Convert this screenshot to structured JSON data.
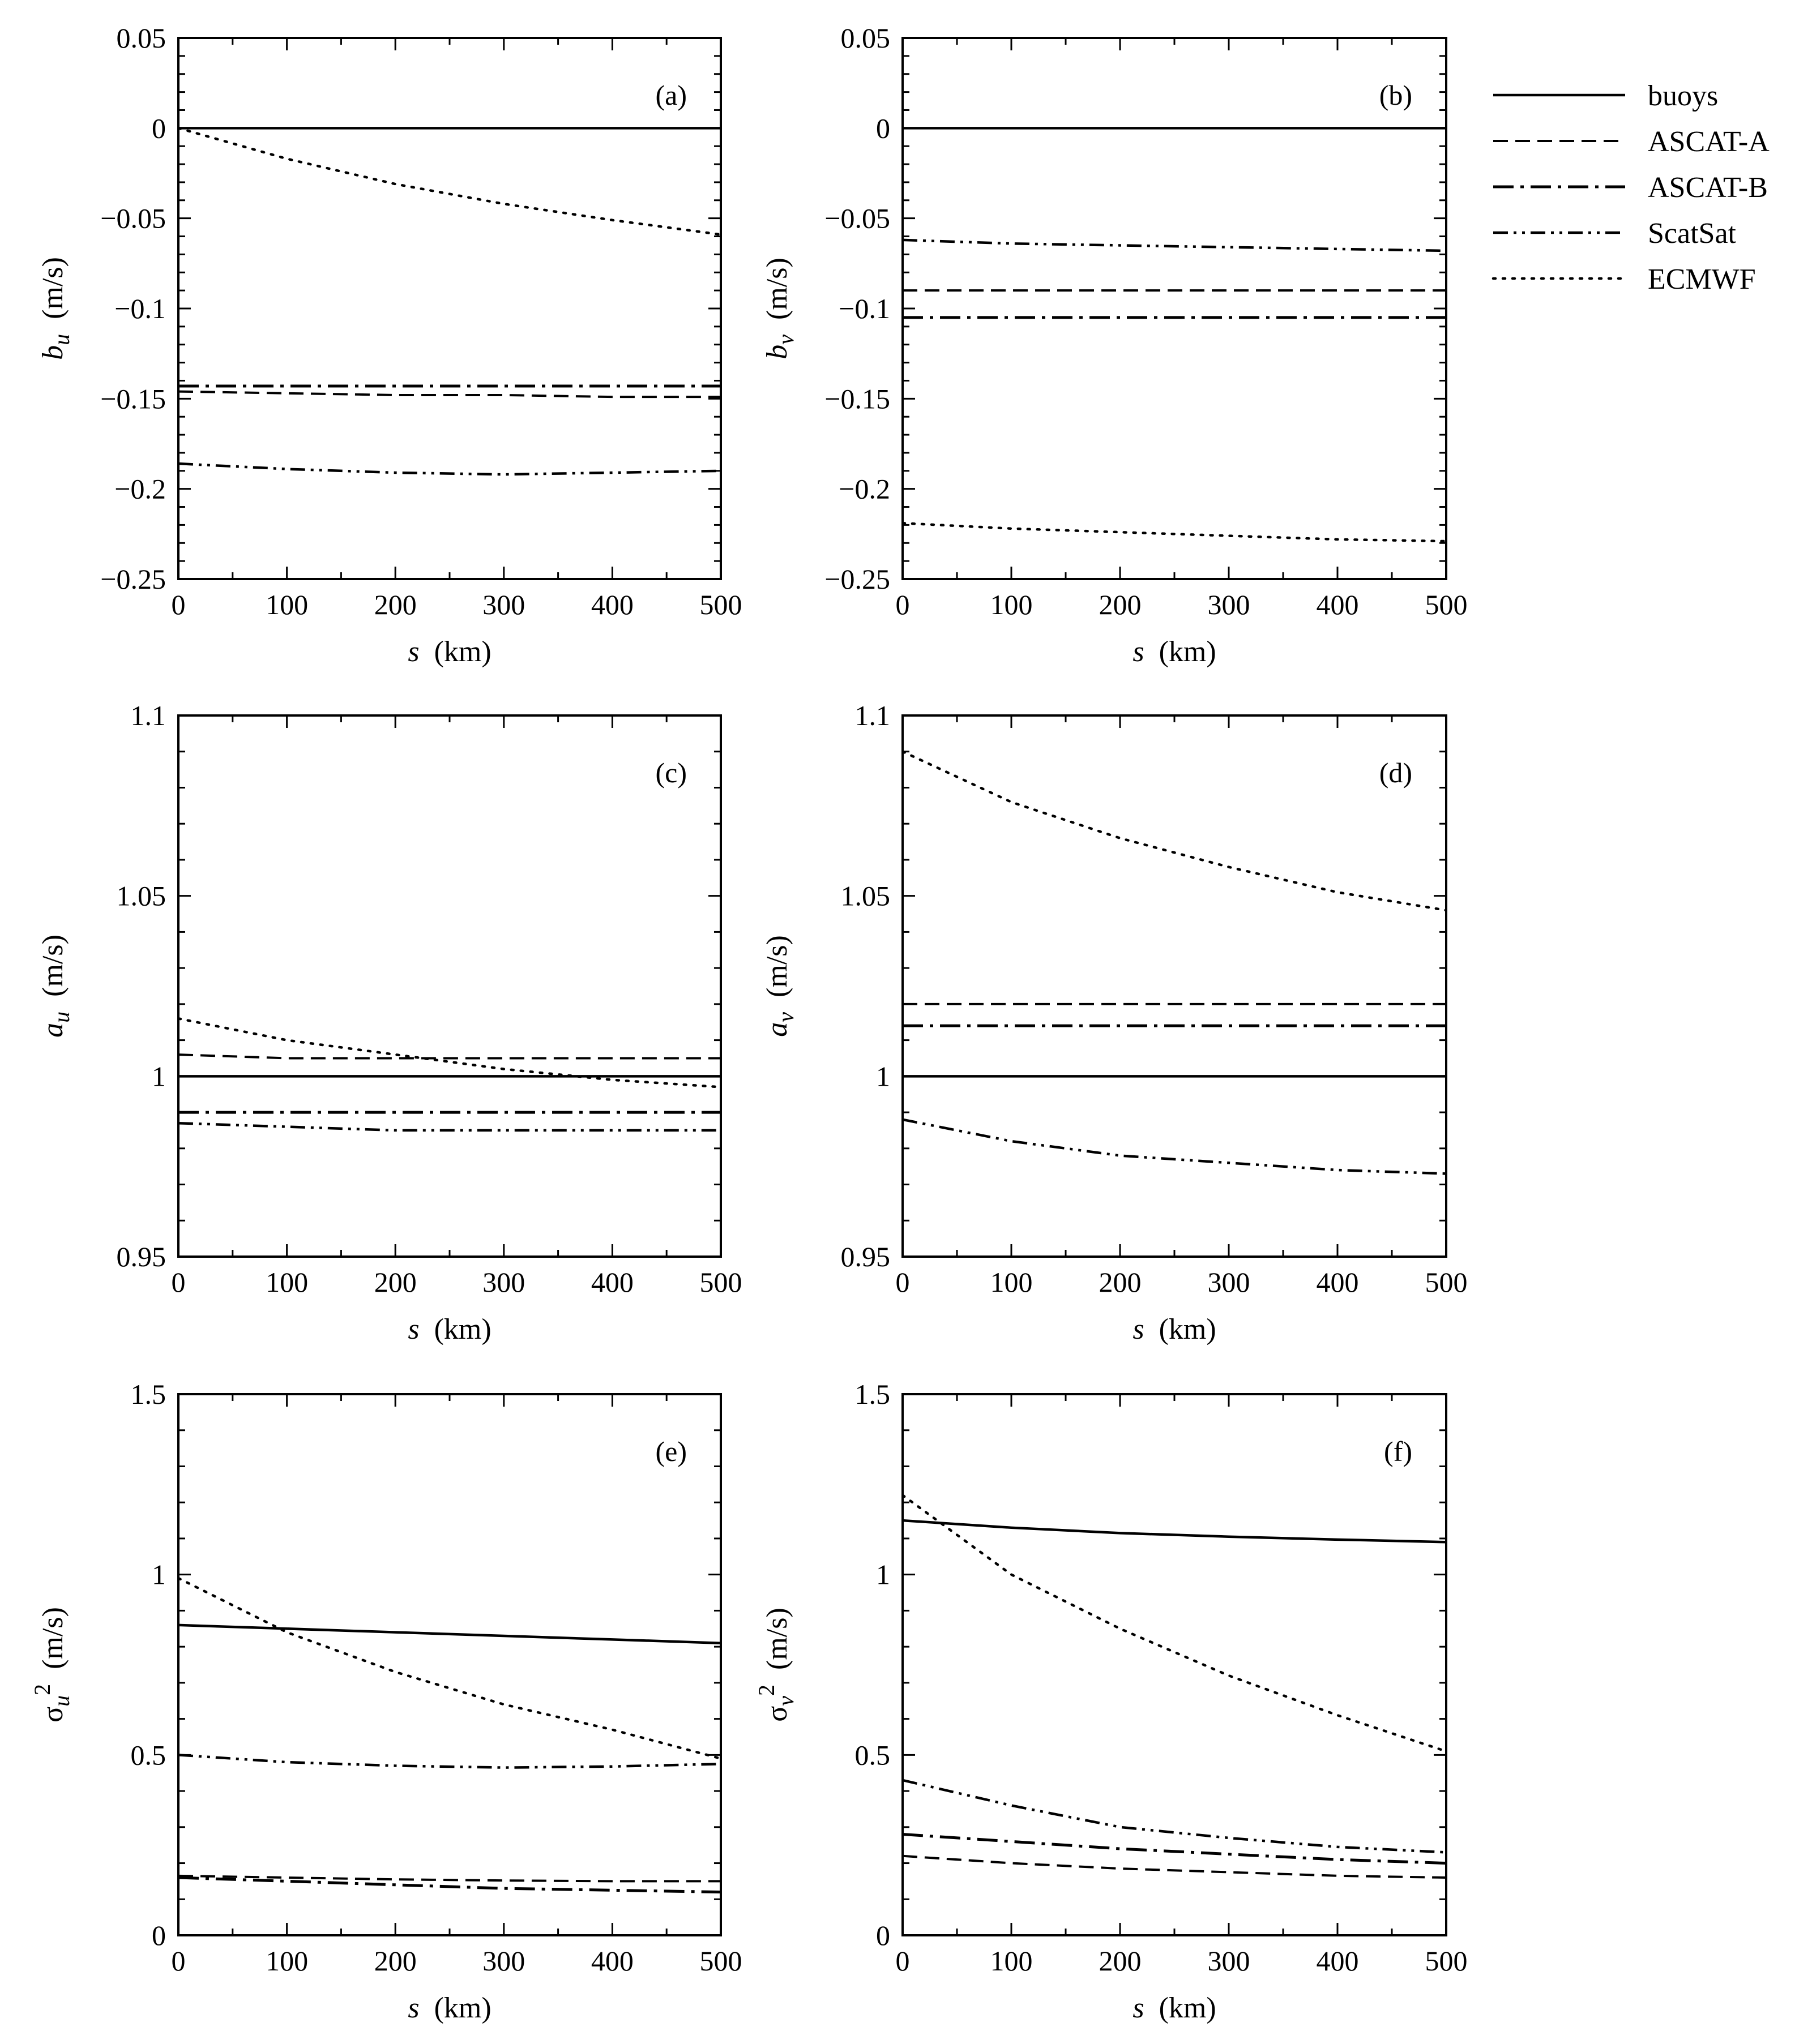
{
  "legend": {
    "entries": [
      {
        "name": "buoys",
        "style": "solid"
      },
      {
        "name": "ASCAT-A",
        "style": "dashed"
      },
      {
        "name": "ASCAT-B",
        "style": "dashdot"
      },
      {
        "name": "ScatSat",
        "style": "dashdotdot"
      },
      {
        "name": "ECMWF",
        "style": "dotted"
      }
    ]
  },
  "chart_data": [
    {
      "type": "line",
      "panel": "(a)",
      "xlabel": "s  (km)",
      "ylabel": "bu (m/s)",
      "ylabel_main": "b",
      "ylabel_sub": "u",
      "ylabel_sup": "",
      "ylabel_unit": "(m/s)",
      "xlim": [
        0,
        500
      ],
      "ylim": [
        -0.25,
        0.05
      ],
      "xticks": [
        0,
        100,
        200,
        300,
        400,
        500
      ],
      "xtick_labels": [
        "0",
        "100",
        "200",
        "300",
        "400",
        "500"
      ],
      "yticks": [
        -0.25,
        -0.2,
        -0.15,
        -0.1,
        -0.05,
        0,
        0.05
      ],
      "ytick_labels": [
        "−0.25",
        "−0.2",
        "−0.15",
        "−0.1",
        "−0.05",
        "0",
        "0.05"
      ],
      "x": [
        0,
        100,
        200,
        300,
        400,
        500
      ],
      "series": [
        {
          "name": "buoys",
          "values": [
            0,
            0,
            0,
            0,
            0,
            0
          ]
        },
        {
          "name": "ASCAT-A",
          "values": [
            -0.146,
            -0.147,
            -0.148,
            -0.148,
            -0.149,
            -0.149
          ]
        },
        {
          "name": "ASCAT-B",
          "values": [
            -0.143,
            -0.143,
            -0.143,
            -0.143,
            -0.143,
            -0.143
          ]
        },
        {
          "name": "ScatSat",
          "values": [
            -0.186,
            -0.189,
            -0.191,
            -0.192,
            -0.191,
            -0.19
          ]
        },
        {
          "name": "ECMWF",
          "values": [
            0,
            -0.017,
            -0.031,
            -0.042,
            -0.051,
            -0.059
          ]
        }
      ]
    },
    {
      "type": "line",
      "panel": "(b)",
      "xlabel": "s  (km)",
      "ylabel": "bv (m/s)",
      "ylabel_main": "b",
      "ylabel_sub": "v",
      "ylabel_sup": "",
      "ylabel_unit": "(m/s)",
      "xlim": [
        0,
        500
      ],
      "ylim": [
        -0.25,
        0.05
      ],
      "xticks": [
        0,
        100,
        200,
        300,
        400,
        500
      ],
      "xtick_labels": [
        "0",
        "100",
        "200",
        "300",
        "400",
        "500"
      ],
      "yticks": [
        -0.25,
        -0.2,
        -0.15,
        -0.1,
        -0.05,
        0,
        0.05
      ],
      "ytick_labels": [
        "−0.25",
        "−0.2",
        "−0.15",
        "−0.1",
        "−0.05",
        "0",
        "0.05"
      ],
      "x": [
        0,
        100,
        200,
        300,
        400,
        500
      ],
      "series": [
        {
          "name": "buoys",
          "values": [
            0,
            0,
            0,
            0,
            0,
            0
          ]
        },
        {
          "name": "ASCAT-A",
          "values": [
            -0.09,
            -0.09,
            -0.09,
            -0.09,
            -0.09,
            -0.09
          ]
        },
        {
          "name": "ASCAT-B",
          "values": [
            -0.105,
            -0.105,
            -0.105,
            -0.105,
            -0.105,
            -0.105
          ]
        },
        {
          "name": "ScatSat",
          "values": [
            -0.062,
            -0.064,
            -0.065,
            -0.066,
            -0.067,
            -0.068
          ]
        },
        {
          "name": "ECMWF",
          "values": [
            -0.219,
            -0.222,
            -0.224,
            -0.226,
            -0.228,
            -0.229
          ]
        }
      ]
    },
    {
      "type": "line",
      "panel": "(c)",
      "xlabel": "s  (km)",
      "ylabel": "au (m/s)",
      "ylabel_main": "a",
      "ylabel_sub": "u",
      "ylabel_sup": "",
      "ylabel_unit": "(m/s)",
      "xlim": [
        0,
        500
      ],
      "ylim": [
        0.95,
        1.1
      ],
      "xticks": [
        0,
        100,
        200,
        300,
        400,
        500
      ],
      "xtick_labels": [
        "0",
        "100",
        "200",
        "300",
        "400",
        "500"
      ],
      "yticks": [
        0.95,
        1,
        1.05,
        1.1
      ],
      "ytick_labels": [
        "0.95",
        "1",
        "1.05",
        "1.1"
      ],
      "x": [
        0,
        100,
        200,
        300,
        400,
        500
      ],
      "series": [
        {
          "name": "buoys",
          "values": [
            1,
            1,
            1,
            1,
            1,
            1
          ]
        },
        {
          "name": "ASCAT-A",
          "values": [
            1.006,
            1.005,
            1.005,
            1.005,
            1.005,
            1.005
          ]
        },
        {
          "name": "ASCAT-B",
          "values": [
            0.99,
            0.99,
            0.99,
            0.99,
            0.99,
            0.99
          ]
        },
        {
          "name": "ScatSat",
          "values": [
            0.987,
            0.986,
            0.985,
            0.985,
            0.985,
            0.985
          ]
        },
        {
          "name": "ECMWF",
          "values": [
            1.016,
            1.01,
            1.006,
            1.002,
            0.999,
            0.997
          ]
        }
      ]
    },
    {
      "type": "line",
      "panel": "(d)",
      "xlabel": "s  (km)",
      "ylabel": "av (m/s)",
      "ylabel_main": "a",
      "ylabel_sub": "v",
      "ylabel_sup": "",
      "ylabel_unit": "(m/s)",
      "xlim": [
        0,
        500
      ],
      "ylim": [
        0.95,
        1.1
      ],
      "xticks": [
        0,
        100,
        200,
        300,
        400,
        500
      ],
      "xtick_labels": [
        "0",
        "100",
        "200",
        "300",
        "400",
        "500"
      ],
      "yticks": [
        0.95,
        1,
        1.05,
        1.1
      ],
      "ytick_labels": [
        "0.95",
        "1",
        "1.05",
        "1.1"
      ],
      "x": [
        0,
        100,
        200,
        300,
        400,
        500
      ],
      "series": [
        {
          "name": "buoys",
          "values": [
            1,
            1,
            1,
            1,
            1,
            1
          ]
        },
        {
          "name": "ASCAT-A",
          "values": [
            1.02,
            1.02,
            1.02,
            1.02,
            1.02,
            1.02
          ]
        },
        {
          "name": "ASCAT-B",
          "values": [
            1.014,
            1.014,
            1.014,
            1.014,
            1.014,
            1.014
          ]
        },
        {
          "name": "ScatSat",
          "values": [
            0.988,
            0.982,
            0.978,
            0.976,
            0.974,
            0.973
          ]
        },
        {
          "name": "ECMWF",
          "values": [
            1.09,
            1.076,
            1.066,
            1.058,
            1.051,
            1.046
          ]
        }
      ]
    },
    {
      "type": "line",
      "panel": "(e)",
      "xlabel": "s  (km)",
      "ylabel": "σu² (m/s)",
      "ylabel_main": "σ",
      "ylabel_sub": "u",
      "ylabel_sup": "2",
      "ylabel_unit": "(m/s)",
      "xlim": [
        0,
        500
      ],
      "ylim": [
        0,
        1.5
      ],
      "xticks": [
        0,
        100,
        200,
        300,
        400,
        500
      ],
      "xtick_labels": [
        "0",
        "100",
        "200",
        "300",
        "400",
        "500"
      ],
      "yticks": [
        0,
        0.5,
        1,
        1.5
      ],
      "ytick_labels": [
        "0",
        "0.5",
        "1",
        "1.5"
      ],
      "x": [
        0,
        100,
        200,
        300,
        400,
        500
      ],
      "series": [
        {
          "name": "buoys",
          "values": [
            0.86,
            0.85,
            0.84,
            0.83,
            0.82,
            0.81
          ]
        },
        {
          "name": "ASCAT-A",
          "values": [
            0.165,
            0.16,
            0.155,
            0.152,
            0.15,
            0.15
          ]
        },
        {
          "name": "ASCAT-B",
          "values": [
            0.16,
            0.15,
            0.14,
            0.13,
            0.125,
            0.12
          ]
        },
        {
          "name": "ScatSat",
          "values": [
            0.5,
            0.48,
            0.47,
            0.465,
            0.468,
            0.475
          ]
        },
        {
          "name": "ECMWF",
          "values": [
            0.99,
            0.84,
            0.73,
            0.64,
            0.57,
            0.49
          ]
        }
      ]
    },
    {
      "type": "line",
      "panel": "(f)",
      "xlabel": "s  (km)",
      "ylabel": "σv² (m/s)",
      "ylabel_main": "σ",
      "ylabel_sub": "v",
      "ylabel_sup": "2",
      "ylabel_unit": "(m/s)",
      "xlim": [
        0,
        500
      ],
      "ylim": [
        0,
        1.5
      ],
      "xticks": [
        0,
        100,
        200,
        300,
        400,
        500
      ],
      "xtick_labels": [
        "0",
        "100",
        "200",
        "300",
        "400",
        "500"
      ],
      "yticks": [
        0,
        0.5,
        1,
        1.5
      ],
      "ytick_labels": [
        "0",
        "0.5",
        "1",
        "1.5"
      ],
      "x": [
        0,
        100,
        200,
        300,
        400,
        500
      ],
      "series": [
        {
          "name": "buoys",
          "values": [
            1.15,
            1.13,
            1.115,
            1.105,
            1.097,
            1.09
          ]
        },
        {
          "name": "ASCAT-A",
          "values": [
            0.22,
            0.2,
            0.185,
            0.175,
            0.165,
            0.16
          ]
        },
        {
          "name": "ASCAT-B",
          "values": [
            0.28,
            0.26,
            0.24,
            0.225,
            0.21,
            0.2
          ]
        },
        {
          "name": "ScatSat",
          "values": [
            0.43,
            0.36,
            0.3,
            0.27,
            0.245,
            0.23
          ]
        },
        {
          "name": "ECMWF",
          "values": [
            1.22,
            1.0,
            0.85,
            0.72,
            0.61,
            0.51
          ]
        }
      ]
    }
  ]
}
